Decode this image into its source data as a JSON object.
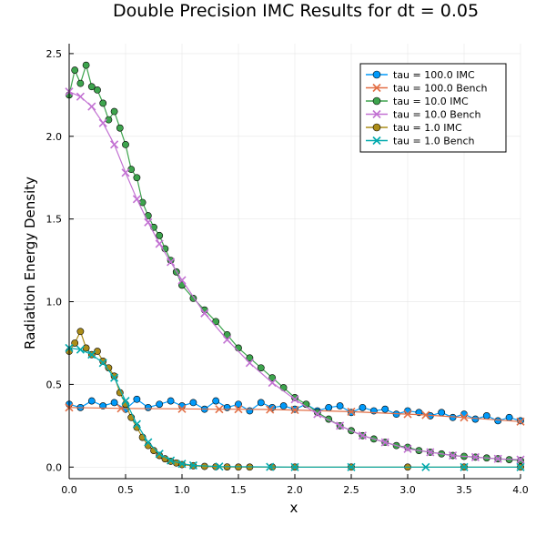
{
  "chart_data": {
    "type": "scatter",
    "title": "Double Precision IMC Results for dt = 0.05",
    "xlabel": "x",
    "ylabel": "Radiation Energy Density",
    "xlim": [
      0.0,
      4.0
    ],
    "ylim": [
      -0.07,
      2.56
    ],
    "xticks": [
      0.0,
      0.5,
      1.0,
      1.5,
      2.0,
      2.5,
      3.0,
      3.5,
      4.0
    ],
    "xtick_labels": [
      "0.0",
      "0.5",
      "1.0",
      "1.5",
      "2.0",
      "2.5",
      "3.0",
      "3.5",
      "4.0"
    ],
    "yticks": [
      0.0,
      0.5,
      1.0,
      1.5,
      2.0,
      2.5
    ],
    "ytick_labels": [
      "0.0",
      "0.5",
      "1.0",
      "1.5",
      "2.0",
      "2.5"
    ],
    "grid": true,
    "legend_position": "top-right",
    "series": [
      {
        "name": "tau = 100.0 IMC",
        "kind": "imc",
        "color": "#009AFA",
        "marker": "circle",
        "x": [
          0.0,
          0.1,
          0.2,
          0.3,
          0.4,
          0.5,
          0.6,
          0.7,
          0.8,
          0.9,
          1.0,
          1.1,
          1.2,
          1.3,
          1.4,
          1.5,
          1.6,
          1.7,
          1.8,
          1.9,
          2.0,
          2.1,
          2.2,
          2.3,
          2.4,
          2.5,
          2.6,
          2.7,
          2.8,
          2.9,
          3.0,
          3.1,
          3.2,
          3.3,
          3.4,
          3.5,
          3.6,
          3.7,
          3.8,
          3.9,
          4.0
        ],
        "y": [
          0.38,
          0.36,
          0.4,
          0.37,
          0.39,
          0.35,
          0.41,
          0.36,
          0.38,
          0.4,
          0.37,
          0.39,
          0.35,
          0.4,
          0.36,
          0.38,
          0.34,
          0.39,
          0.36,
          0.37,
          0.35,
          0.38,
          0.34,
          0.36,
          0.37,
          0.33,
          0.36,
          0.34,
          0.35,
          0.32,
          0.34,
          0.33,
          0.31,
          0.33,
          0.3,
          0.32,
          0.29,
          0.31,
          0.28,
          0.3,
          0.28
        ]
      },
      {
        "name": "tau = 100.0 Bench",
        "kind": "bench",
        "color": "#E26F46",
        "marker": "x",
        "x": [
          0.0,
          0.46,
          1.0,
          1.33,
          1.5,
          1.78,
          2.0,
          2.5,
          3.0,
          3.16,
          3.5,
          4.0
        ],
        "y": [
          0.36,
          0.355,
          0.352,
          0.35,
          0.35,
          0.348,
          0.345,
          0.335,
          0.32,
          0.315,
          0.3,
          0.275
        ]
      },
      {
        "name": "tau = 10.0 IMC",
        "kind": "imc",
        "color": "#3DA44D",
        "marker": "circle",
        "x": [
          0.0,
          0.05,
          0.1,
          0.15,
          0.2,
          0.25,
          0.3,
          0.35,
          0.4,
          0.45,
          0.5,
          0.55,
          0.6,
          0.65,
          0.7,
          0.75,
          0.8,
          0.85,
          0.9,
          0.95,
          1.0,
          1.1,
          1.2,
          1.3,
          1.4,
          1.5,
          1.6,
          1.7,
          1.8,
          1.9,
          2.0,
          2.1,
          2.2,
          2.3,
          2.4,
          2.5,
          2.6,
          2.7,
          2.8,
          2.9,
          3.0,
          3.1,
          3.2,
          3.3,
          3.4,
          3.5,
          3.6,
          3.7,
          3.8,
          3.9,
          4.0
        ],
        "y": [
          2.25,
          2.4,
          2.32,
          2.43,
          2.3,
          2.28,
          2.2,
          2.1,
          2.15,
          2.05,
          1.95,
          1.8,
          1.75,
          1.6,
          1.52,
          1.45,
          1.4,
          1.32,
          1.25,
          1.18,
          1.1,
          1.02,
          0.95,
          0.88,
          0.8,
          0.72,
          0.66,
          0.6,
          0.54,
          0.48,
          0.42,
          0.38,
          0.33,
          0.29,
          0.25,
          0.22,
          0.19,
          0.17,
          0.15,
          0.13,
          0.12,
          0.1,
          0.09,
          0.08,
          0.07,
          0.065,
          0.06,
          0.055,
          0.05,
          0.045,
          0.04
        ]
      },
      {
        "name": "tau = 10.0 Bench",
        "kind": "bench",
        "color": "#C271D2",
        "marker": "x",
        "x": [
          0.0,
          0.1,
          0.2,
          0.3,
          0.4,
          0.5,
          0.6,
          0.7,
          0.8,
          0.9,
          1.0,
          1.2,
          1.4,
          1.6,
          1.8,
          2.0,
          2.2,
          2.4,
          2.6,
          2.8,
          3.0,
          3.2,
          3.4,
          3.6,
          3.8,
          4.0
        ],
        "y": [
          2.27,
          2.24,
          2.18,
          2.08,
          1.95,
          1.78,
          1.62,
          1.48,
          1.35,
          1.24,
          1.13,
          0.93,
          0.77,
          0.63,
          0.51,
          0.41,
          0.32,
          0.25,
          0.19,
          0.15,
          0.11,
          0.09,
          0.07,
          0.06,
          0.05,
          0.045
        ]
      },
      {
        "name": "tau = 1.0 IMC",
        "kind": "imc",
        "color": "#AC8D18",
        "marker": "circle",
        "x": [
          0.0,
          0.05,
          0.1,
          0.15,
          0.2,
          0.25,
          0.3,
          0.35,
          0.4,
          0.45,
          0.5,
          0.55,
          0.6,
          0.65,
          0.7,
          0.75,
          0.8,
          0.85,
          0.9,
          0.95,
          1.0,
          1.1,
          1.2,
          1.3,
          1.4,
          1.5,
          1.6,
          1.8,
          2.0,
          2.5,
          3.0,
          3.5,
          4.0
        ],
        "y": [
          0.7,
          0.75,
          0.82,
          0.72,
          0.68,
          0.7,
          0.64,
          0.6,
          0.55,
          0.45,
          0.38,
          0.3,
          0.24,
          0.18,
          0.13,
          0.1,
          0.07,
          0.05,
          0.035,
          0.025,
          0.015,
          0.008,
          0.004,
          0.002,
          0.001,
          0.0,
          0.0,
          0.0,
          0.0,
          0.0,
          0.0,
          0.0,
          0.0
        ]
      },
      {
        "name": "tau = 1.0 Bench",
        "kind": "bench",
        "color": "#00A9AD",
        "marker": "x",
        "x": [
          0.0,
          0.1,
          0.2,
          0.3,
          0.4,
          0.5,
          0.6,
          0.7,
          0.8,
          0.9,
          1.0,
          1.1,
          1.33,
          1.78,
          2.0,
          2.5,
          3.16,
          3.5,
          4.0
        ],
        "y": [
          0.72,
          0.71,
          0.68,
          0.63,
          0.54,
          0.4,
          0.26,
          0.15,
          0.08,
          0.04,
          0.02,
          0.01,
          0.003,
          0.001,
          0.0,
          0.0,
          0.0,
          0.0,
          0.0
        ]
      }
    ]
  }
}
